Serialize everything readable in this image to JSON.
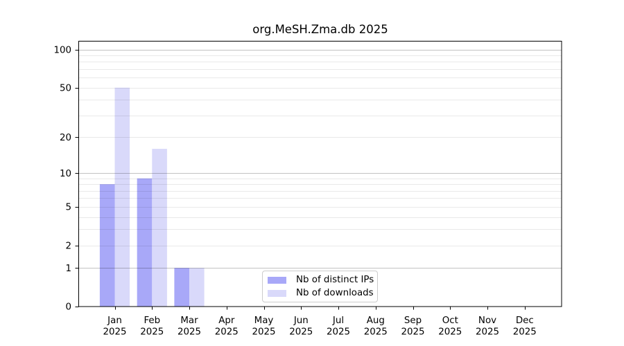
{
  "chart_data": {
    "type": "bar",
    "title": "org.MeSH.Zma.db 2025",
    "year": "2025",
    "categories": [
      "Jan",
      "Feb",
      "Mar",
      "Apr",
      "May",
      "Jun",
      "Jul",
      "Aug",
      "Sep",
      "Oct",
      "Nov",
      "Dec"
    ],
    "series": [
      {
        "name": "Nb of distinct IPs",
        "color": "#a8a8f8",
        "values": [
          8,
          9,
          1,
          0,
          0,
          0,
          0,
          0,
          0,
          0,
          0,
          0
        ]
      },
      {
        "name": "Nb of downloads",
        "color": "#d9d9fa",
        "values": [
          50,
          16,
          1,
          0,
          0,
          0,
          0,
          0,
          0,
          0,
          0,
          0
        ]
      }
    ],
    "yscale": "log1p",
    "ylim": [
      0,
      116.6
    ],
    "yticks": [
      0,
      1,
      2,
      5,
      10,
      20,
      50,
      100
    ],
    "ytick_labels": [
      "0",
      "1",
      "2",
      "5",
      "10",
      "20",
      "50",
      "100"
    ],
    "major_gridlines": [
      1,
      10,
      100
    ],
    "minor_gridlines": [
      2,
      3,
      4,
      5,
      6,
      7,
      8,
      9,
      20,
      30,
      40,
      50,
      60,
      70,
      80,
      90
    ],
    "grid": true,
    "legend_position": "lower center",
    "colors": {
      "spine": "#000000",
      "major_grid": "rgba(0,0,0,0.24)",
      "minor_grid": "rgba(0,0,0,0.085)"
    }
  }
}
